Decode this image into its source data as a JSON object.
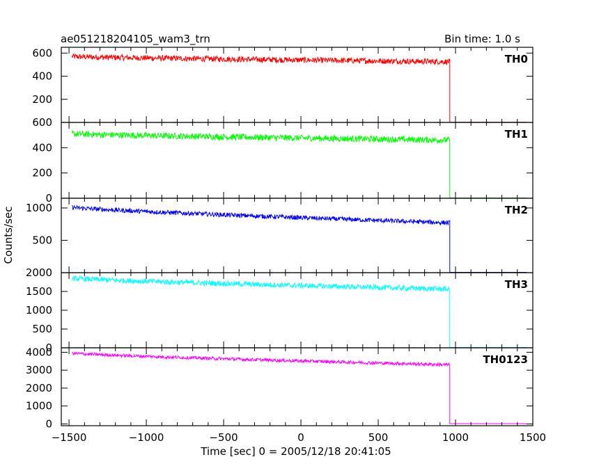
{
  "header": {
    "title": "ae051218204105_wam3_trn",
    "bin_time": "Bin time: 1.0 s"
  },
  "xlabel": "Time [sec] 0 = 2005/12/18 20:41:05",
  "ylabel": "Counts/sec",
  "chart_data": {
    "type": "line",
    "xlim": [
      -1550,
      1500
    ],
    "x_ticks": [
      -1500,
      -1000,
      -500,
      0,
      500,
      1000,
      1500
    ],
    "x_tick_labels": [
      "−1500",
      "−1000",
      "−500",
      "0",
      "500",
      "1000",
      "1500"
    ],
    "panels": [
      {
        "name": "TH0",
        "color": "#ff0000",
        "ylim": [
          0,
          650
        ],
        "y_ticks": [
          200,
          400,
          600
        ],
        "y_tick_labels": [
          "200",
          "400",
          "600"
        ],
        "start_x": -1480,
        "drop_x": 963,
        "end_x": 1460,
        "level_start": 570,
        "level_end": 525,
        "noise": 25,
        "after_level": 2
      },
      {
        "name": "TH1",
        "color": "#00ff00",
        "ylim": [
          0,
          600
        ],
        "y_ticks": [
          0,
          200,
          400,
          600
        ],
        "y_tick_labels": [
          "0",
          "200",
          "400",
          "600"
        ],
        "start_x": -1480,
        "drop_x": 963,
        "end_x": 1460,
        "level_start": 510,
        "level_end": 460,
        "noise": 25,
        "after_level": 2
      },
      {
        "name": "TH2",
        "color": "#0000ff",
        "ylim": [
          0,
          1150
        ],
        "y_ticks": [
          500,
          1000
        ],
        "y_tick_labels": [
          "500",
          "1000"
        ],
        "start_x": -1480,
        "drop_x": 963,
        "end_x": 1460,
        "level_start": 1010,
        "level_end": 770,
        "noise": 35,
        "after_level": 5
      },
      {
        "name": "TH3",
        "color": "#00ffff",
        "ylim": [
          0,
          2000
        ],
        "y_ticks": [
          0,
          500,
          1000,
          1500,
          2000
        ],
        "y_tick_labels": [
          "0",
          "500",
          "1000",
          "1500",
          "2000"
        ],
        "start_x": -1480,
        "drop_x": 963,
        "end_x": 1460,
        "level_start": 1850,
        "level_end": 1560,
        "noise": 70,
        "after_level": 8
      },
      {
        "name": "TH0123",
        "color": "#ff00ff",
        "ylim": [
          -100,
          4250
        ],
        "y_ticks": [
          0,
          1000,
          2000,
          3000,
          4000
        ],
        "y_tick_labels": [
          "0",
          "1000",
          "2000",
          "3000",
          "4000"
        ],
        "start_x": -1480,
        "drop_x": 963,
        "end_x": 1460,
        "level_start": 3950,
        "level_end": 3300,
        "noise": 90,
        "after_level": 15
      }
    ]
  }
}
